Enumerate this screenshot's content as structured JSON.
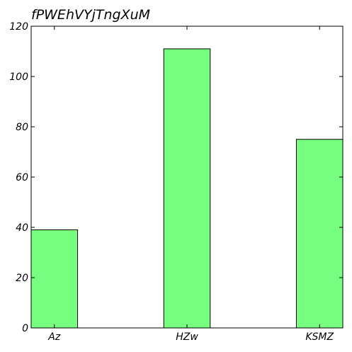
{
  "chart_data": {
    "type": "bar",
    "title": "fPWEhVYjTngXuM",
    "categories": [
      "Az",
      "HZw",
      "KSMZ"
    ],
    "values": [
      39,
      111,
      75
    ],
    "ylim": [
      0,
      120
    ],
    "yticks": [
      0,
      20,
      40,
      60,
      80,
      100,
      120
    ],
    "xlabel": "",
    "ylabel": "",
    "grid": false,
    "bar_color": "#77ff7f",
    "edge_color": "#000000"
  }
}
